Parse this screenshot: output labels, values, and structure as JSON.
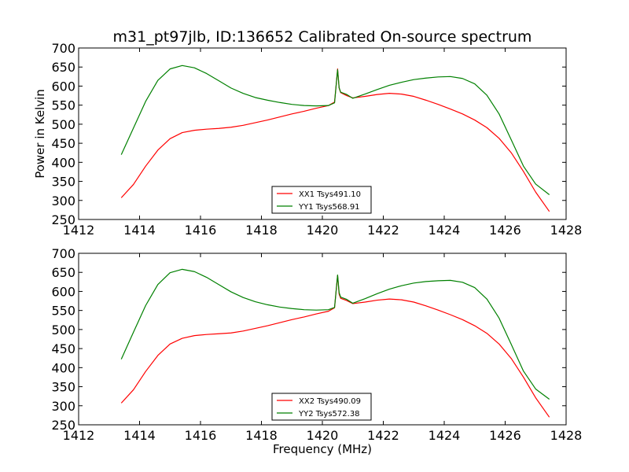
{
  "chart_data": {
    "title": "m31_pt97jlb, ID:136652 Calibrated On-source spectrum",
    "xlabel": "Frequency (MHz)",
    "ylabel": "Power in Kelvin",
    "panels": [
      {
        "type": "line",
        "xlim": [
          1412,
          1428
        ],
        "ylim": [
          250,
          700
        ],
        "xticks": [
          1412,
          1414,
          1416,
          1418,
          1420,
          1422,
          1424,
          1426,
          1428
        ],
        "yticks": [
          250,
          300,
          350,
          400,
          450,
          500,
          550,
          600,
          650,
          700
        ],
        "legend_position": "lower-center",
        "series": [
          {
            "name": "XX1 Tsys491.10",
            "color": "#ff0000",
            "x": [
              1413.4,
              1413.8,
              1414.2,
              1414.6,
              1415.0,
              1415.4,
              1415.8,
              1416.2,
              1416.6,
              1417.0,
              1417.4,
              1417.8,
              1418.2,
              1418.6,
              1419.0,
              1419.4,
              1419.8,
              1420.2,
              1420.4,
              1420.45,
              1420.5,
              1420.55,
              1420.6,
              1420.8,
              1421.0,
              1421.4,
              1421.8,
              1422.2,
              1422.6,
              1423.0,
              1423.4,
              1423.8,
              1424.2,
              1424.6,
              1425.0,
              1425.4,
              1425.8,
              1426.2,
              1426.6,
              1427.0,
              1427.45
            ],
            "y": [
              307,
              342,
              390,
              432,
              462,
              478,
              484,
              487,
              489,
              492,
              497,
              504,
              511,
              519,
              527,
              534,
              542,
              549,
              558,
              600,
              645,
              595,
              583,
              575,
              569,
              573,
              578,
              581,
              579,
              573,
              563,
              552,
              540,
              527,
              511,
              491,
              463,
              425,
              376,
              322,
              271
            ]
          },
          {
            "name": "YY1 Tsys568.91",
            "color": "#008000",
            "x": [
              1413.4,
              1413.8,
              1414.2,
              1414.6,
              1415.0,
              1415.4,
              1415.8,
              1416.2,
              1416.6,
              1417.0,
              1417.4,
              1417.8,
              1418.2,
              1418.6,
              1419.0,
              1419.4,
              1419.8,
              1420.2,
              1420.4,
              1420.45,
              1420.5,
              1420.55,
              1420.6,
              1420.8,
              1421.0,
              1421.4,
              1421.8,
              1422.2,
              1422.6,
              1423.0,
              1423.4,
              1423.8,
              1424.2,
              1424.6,
              1425.0,
              1425.4,
              1425.8,
              1426.2,
              1426.6,
              1427.0,
              1427.45
            ],
            "y": [
              420,
              490,
              560,
              615,
              645,
              654,
              648,
              633,
              614,
              595,
              581,
              570,
              563,
              557,
              552,
              549,
              548,
              549,
              556,
              600,
              643,
              596,
              584,
              578,
              568,
              579,
              591,
              602,
              610,
              617,
              621,
              624,
              625,
              620,
              606,
              576,
              527,
              459,
              390,
              343,
              315
            ]
          }
        ]
      },
      {
        "type": "line",
        "xlim": [
          1412,
          1428
        ],
        "ylim": [
          250,
          700
        ],
        "xticks": [
          1412,
          1414,
          1416,
          1418,
          1420,
          1422,
          1424,
          1426,
          1428
        ],
        "yticks": [
          250,
          300,
          350,
          400,
          450,
          500,
          550,
          600,
          650,
          700
        ],
        "legend_position": "lower-center",
        "series": [
          {
            "name": "XX2 Tsys490.09",
            "color": "#ff0000",
            "x": [
              1413.4,
              1413.8,
              1414.2,
              1414.6,
              1415.0,
              1415.4,
              1415.8,
              1416.2,
              1416.6,
              1417.0,
              1417.4,
              1417.8,
              1418.2,
              1418.6,
              1419.0,
              1419.4,
              1419.8,
              1420.2,
              1420.4,
              1420.45,
              1420.5,
              1420.55,
              1420.6,
              1420.8,
              1421.0,
              1421.4,
              1421.8,
              1422.2,
              1422.6,
              1423.0,
              1423.4,
              1423.8,
              1424.2,
              1424.6,
              1425.0,
              1425.4,
              1425.8,
              1426.2,
              1426.6,
              1427.0,
              1427.45
            ],
            "y": [
              307,
              342,
              390,
              432,
              462,
              477,
              484,
              487,
              489,
              491,
              496,
              503,
              510,
              518,
              526,
              533,
              541,
              548,
              557,
              600,
              642,
              593,
              582,
              576,
              568,
              572,
              577,
              580,
              578,
              572,
              562,
              551,
              539,
              526,
              510,
              490,
              462,
              424,
              375,
              321,
              270
            ]
          },
          {
            "name": "YY2 Tsys572.38",
            "color": "#008000",
            "x": [
              1413.4,
              1413.8,
              1414.2,
              1414.6,
              1415.0,
              1415.4,
              1415.8,
              1416.2,
              1416.6,
              1417.0,
              1417.4,
              1417.8,
              1418.2,
              1418.6,
              1419.0,
              1419.4,
              1419.8,
              1420.2,
              1420.4,
              1420.45,
              1420.5,
              1420.55,
              1420.6,
              1420.8,
              1421.0,
              1421.4,
              1421.8,
              1422.2,
              1422.6,
              1423.0,
              1423.4,
              1423.8,
              1424.2,
              1424.6,
              1425.0,
              1425.4,
              1425.8,
              1426.2,
              1426.6,
              1427.0,
              1427.45
            ],
            "y": [
              422,
              493,
              563,
              618,
              649,
              658,
              652,
              637,
              618,
              599,
              584,
              573,
              565,
              559,
              555,
              552,
              551,
              552,
              558,
              600,
              643,
              597,
              585,
              579,
              569,
              581,
              594,
              606,
              615,
              622,
              626,
              628,
              629,
              624,
              610,
              580,
              530,
              461,
              391,
              344,
              317
            ]
          }
        ]
      }
    ]
  }
}
